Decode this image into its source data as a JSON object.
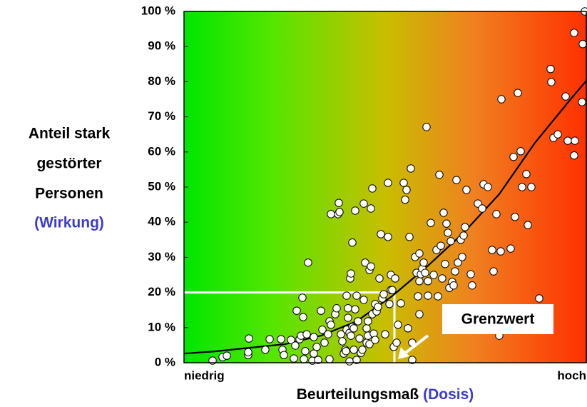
{
  "chart_data": {
    "type": "scatter",
    "ylabel": [
      "Anteil stark",
      "gestörter",
      "Personen",
      "(Wirkung)"
    ],
    "xlabel": [
      "Beurteilungsmaß",
      "(Dosis)"
    ],
    "x_end_labels": [
      "niedrig",
      "hoch"
    ],
    "annotation": "Grenzwert",
    "threshold": {
      "x": 295,
      "y": 20
    },
    "xlim": [
      0,
      565
    ],
    "ylim": [
      0,
      100
    ],
    "yticks": [
      {
        "value": 0,
        "label": "0 %"
      },
      {
        "value": 10,
        "label": "10 %"
      },
      {
        "value": 20,
        "label": "20 %"
      },
      {
        "value": 30,
        "label": "30 %"
      },
      {
        "value": 40,
        "label": "40 %"
      },
      {
        "value": 50,
        "label": "50 %"
      },
      {
        "value": 60,
        "label": "60 %"
      },
      {
        "value": 70,
        "label": "70 %"
      },
      {
        "value": 80,
        "label": "80 %"
      },
      {
        "value": 90,
        "label": "90 %"
      },
      {
        "value": 100,
        "label": "100 %"
      }
    ],
    "series": [
      {
        "color": "#ffffff",
        "x": [
          40,
          54,
          60,
          90,
          90,
          91,
          114,
          120,
          136,
          138,
          140,
          150,
          154,
          156,
          158,
          162,
          164,
          166,
          167,
          168,
          170,
          172,
          174,
          180,
          182,
          182,
          186,
          188,
          192,
          194,
          197,
          202,
          204,
          204,
          206,
          206,
          212,
          214,
          216,
          217,
          218,
          220,
          222,
          224,
          226,
          227,
          228,
          228,
          230,
          230,
          232,
          232,
          233,
          234,
          234,
          236,
          236,
          238,
          238,
          240,
          240,
          242,
          242,
          244,
          246,
          248,
          250,
          252,
          252,
          254,
          256,
          256,
          258,
          258,
          260,
          260,
          262,
          262,
          264,
          264,
          266,
          268,
          268,
          270,
          272,
          274,
          276,
          278,
          280,
          282,
          286,
          286,
          288,
          290,
          290,
          292,
          294,
          296,
          298,
          300,
          304,
          308,
          310,
          312,
          314,
          316,
          318,
          320,
          320,
          324,
          326,
          328,
          330,
          330,
          330,
          332,
          334,
          336,
          338,
          340,
          342,
          342,
          346,
          350,
          354,
          356,
          358,
          360,
          362,
          364,
          366,
          368,
          370,
          372,
          374,
          376,
          378,
          380,
          382,
          384,
          388,
          390,
          392,
          394,
          396,
          402,
          404,
          412,
          418,
          420,
          426,
          432,
          434,
          438,
          442,
          444,
          445,
          458,
          462,
          464,
          468,
          472,
          474,
          480,
          482,
          487,
          498,
          514,
          515,
          518,
          524,
          535,
          538,
          548,
          547,
          547,
          559,
          558,
          562
        ],
        "values": [
          0.6,
          1.6,
          2,
          2.2,
          3,
          6.9,
          3.7,
          6.7,
          6.7,
          3.7,
          2.2,
          6.5,
          1.2,
          4.9,
          14.8,
          6.7,
          7.7,
          18.5,
          13,
          1,
          3.3,
          8.1,
          28.5,
          0.6,
          2.6,
          7.3,
          4.5,
          0.8,
          14.8,
          9.4,
          5.7,
          8.1,
          11.8,
          1,
          10.8,
          42.3,
          13.8,
          15.5,
          42.3,
          45.5,
          42.9,
          8.1,
          6.1,
          2.6,
          3.7,
          3.3,
          9.4,
          19.1,
          15.5,
          12.8,
          8.5,
          0.4,
          24,
          25.4,
          7.7,
          10.2,
          34.2,
          3.7,
          9.8,
          15.2,
          43.3,
          0.8,
          19.1,
          11.8,
          6.9,
          2.8,
          3.7,
          45.3,
          17.9,
          28.5,
          9.8,
          5.7,
          11.8,
          7.7,
          5.3,
          26.4,
          43.9,
          27.4,
          49.6,
          13.8,
          8.3,
          16.7,
          6.5,
          14.6,
          15.9,
          24,
          36.6,
          18.3,
          19.5,
          8.1,
          51.2,
          35.8,
          16.7,
          20.7,
          25,
          20.7,
          4.5,
          24,
          5.7,
          10.8,
          16.9,
          51.2,
          46.4,
          49.2,
          9.8,
          35.8,
          55.3,
          0.8,
          5.7,
          30.1,
          25.6,
          18.9,
          23.2,
          13.8,
          31.1,
          25.2,
          26.8,
          28.5,
          25.6,
          67.1,
          23.2,
          19.1,
          39.8,
          25,
          32.1,
          18.9,
          53.5,
          33.3,
          24,
          42.7,
          28.1,
          39.6,
          37,
          21.3,
          34.6,
          23,
          22,
          26,
          52,
          28.5,
          35,
          30.1,
          36.2,
          38.6,
          49.2,
          25.2,
          22,
          45.3,
          43.9,
          50.8,
          50,
          32.1,
          26,
          42.3,
          7.7,
          31.7,
          75,
          32.5,
          58.6,
          41.5,
          76.8,
          60.2,
          50,
          53.7,
          39.2,
          50,
          18.3,
          83.6,
          79.9,
          64,
          65,
          75.8,
          63.2,
          63.2,
          59,
          93.9,
          90.7,
          74.2,
          100
        ]
      }
    ],
    "curve": {
      "color": "#000000",
      "x": [
        0,
        42,
        142,
        192,
        242,
        292,
        342,
        392,
        442,
        492,
        542,
        565
      ],
      "values": [
        2.6,
        3.2,
        5.3,
        7.7,
        11.8,
        19,
        27.6,
        37,
        48,
        62.6,
        75,
        80.5
      ]
    }
  }
}
